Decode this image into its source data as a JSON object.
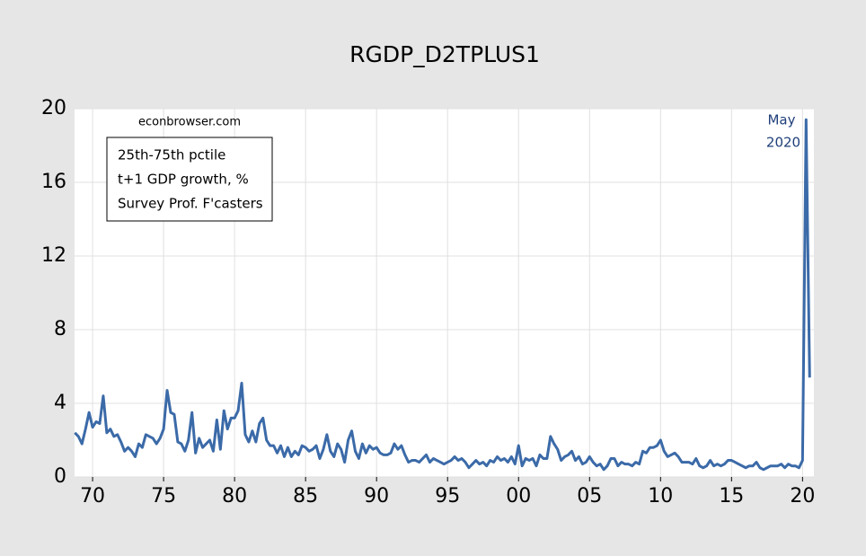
{
  "chart_data": {
    "type": "line",
    "title": "RGDP_D2TPLUS1",
    "annotations": {
      "source": "econbrowser.com",
      "box": [
        "25th-75th pctile",
        "t+1 GDP growth, %",
        "Survey Prof. F'casters"
      ],
      "peak": [
        "May",
        "2020"
      ]
    },
    "x": [
      1968.75,
      1969,
      1969.25,
      1969.5,
      1969.75,
      1970,
      1970.25,
      1970.5,
      1970.75,
      1971,
      1971.25,
      1971.5,
      1971.75,
      1972,
      1972.25,
      1972.5,
      1972.75,
      1973,
      1973.25,
      1973.5,
      1973.75,
      1974,
      1974.25,
      1974.5,
      1974.75,
      1975,
      1975.25,
      1975.5,
      1975.75,
      1976,
      1976.25,
      1976.5,
      1976.75,
      1977,
      1977.25,
      1977.5,
      1977.75,
      1978,
      1978.25,
      1978.5,
      1978.75,
      1979,
      1979.25,
      1979.5,
      1979.75,
      1980,
      1980.25,
      1980.5,
      1980.75,
      1981,
      1981.25,
      1981.5,
      1981.75,
      1982,
      1982.25,
      1982.5,
      1982.75,
      1983,
      1983.25,
      1983.5,
      1983.75,
      1984,
      1984.25,
      1984.5,
      1984.75,
      1985,
      1985.25,
      1985.5,
      1985.75,
      1986,
      1986.25,
      1986.5,
      1986.75,
      1987,
      1987.25,
      1987.5,
      1987.75,
      1988,
      1988.25,
      1988.5,
      1988.75,
      1989,
      1989.25,
      1989.5,
      1989.75,
      1990,
      1990.25,
      1990.5,
      1990.75,
      1991,
      1991.25,
      1991.5,
      1991.75,
      1992,
      1992.25,
      1992.5,
      1992.75,
      1993,
      1993.25,
      1993.5,
      1993.75,
      1994,
      1994.25,
      1994.5,
      1994.75,
      1995,
      1995.25,
      1995.5,
      1995.75,
      1996,
      1996.25,
      1996.5,
      1996.75,
      1997,
      1997.25,
      1997.5,
      1997.75,
      1998,
      1998.25,
      1998.5,
      1998.75,
      1999,
      1999.25,
      1999.5,
      1999.75,
      2000,
      2000.25,
      2000.5,
      2000.75,
      2001,
      2001.25,
      2001.5,
      2001.75,
      2002,
      2002.25,
      2002.5,
      2002.75,
      2003,
      2003.25,
      2003.5,
      2003.75,
      2004,
      2004.25,
      2004.5,
      2004.75,
      2005,
      2005.25,
      2005.5,
      2005.75,
      2006,
      2006.25,
      2006.5,
      2006.75,
      2007,
      2007.25,
      2007.5,
      2007.75,
      2008,
      2008.25,
      2008.5,
      2008.75,
      2009,
      2009.25,
      2009.5,
      2009.75,
      2010,
      2010.25,
      2010.5,
      2010.75,
      2011,
      2011.25,
      2011.5,
      2011.75,
      2012,
      2012.25,
      2012.5,
      2012.75,
      2013,
      2013.25,
      2013.5,
      2013.75,
      2014,
      2014.25,
      2014.5,
      2014.75,
      2015,
      2015.25,
      2015.5,
      2015.75,
      2016,
      2016.25,
      2016.5,
      2016.75,
      2017,
      2017.25,
      2017.5,
      2017.75,
      2018,
      2018.25,
      2018.5,
      2018.75,
      2019,
      2019.25,
      2019.5,
      2019.75,
      2020,
      2020.25,
      2020.5
    ],
    "series": [
      {
        "color": "#3b6aa8",
        "values": [
          2.4,
          2.2,
          1.8,
          2.6,
          3.5,
          2.7,
          3.0,
          2.9,
          4.4,
          2.4,
          2.6,
          2.2,
          2.3,
          1.9,
          1.4,
          1.6,
          1.4,
          1.1,
          1.8,
          1.6,
          2.3,
          2.2,
          2.1,
          1.8,
          2.1,
          2.6,
          4.7,
          3.5,
          3.4,
          1.9,
          1.8,
          1.4,
          2.0,
          3.5,
          1.3,
          2.1,
          1.6,
          1.8,
          2.0,
          1.4,
          3.1,
          1.5,
          3.6,
          2.6,
          3.2,
          3.2,
          3.6,
          5.1,
          2.3,
          1.9,
          2.5,
          1.9,
          2.9,
          3.2,
          2.0,
          1.7,
          1.7,
          1.3,
          1.7,
          1.1,
          1.6,
          1.1,
          1.4,
          1.2,
          1.7,
          1.6,
          1.4,
          1.5,
          1.7,
          1.0,
          1.5,
          2.3,
          1.4,
          1.1,
          1.8,
          1.5,
          0.8,
          2.0,
          2.5,
          1.4,
          1.0,
          1.8,
          1.3,
          1.7,
          1.5,
          1.6,
          1.3,
          1.2,
          1.2,
          1.3,
          1.8,
          1.5,
          1.7,
          1.2,
          0.8,
          0.9,
          0.9,
          0.8,
          1.0,
          1.2,
          0.8,
          1.0,
          0.9,
          0.8,
          0.7,
          0.8,
          0.9,
          1.1,
          0.9,
          1.0,
          0.8,
          0.5,
          0.7,
          0.9,
          0.7,
          0.8,
          0.6,
          0.9,
          0.8,
          1.1,
          0.9,
          1.0,
          0.8,
          1.1,
          0.7,
          1.7,
          0.6,
          1.0,
          0.9,
          1.0,
          0.6,
          1.2,
          1.0,
          1.0,
          2.2,
          1.8,
          1.5,
          0.9,
          1.1,
          1.2,
          1.4,
          0.9,
          1.1,
          0.7,
          0.8,
          1.1,
          0.8,
          0.6,
          0.7,
          0.4,
          0.6,
          1.0,
          1.0,
          0.6,
          0.8,
          0.7,
          0.7,
          0.6,
          0.8,
          0.7,
          1.4,
          1.3,
          1.6,
          1.6,
          1.7,
          2.0,
          1.4,
          1.1,
          1.2,
          1.3,
          1.1,
          0.8,
          0.8,
          0.8,
          0.7,
          1.0,
          0.6,
          0.5,
          0.6,
          0.9,
          0.6,
          0.7,
          0.6,
          0.7,
          0.9,
          0.9,
          0.8,
          0.7,
          0.6,
          0.5,
          0.6,
          0.6,
          0.8,
          0.5,
          0.4,
          0.5,
          0.6,
          0.6,
          0.6,
          0.7,
          0.5,
          0.7,
          0.6,
          0.6,
          0.5,
          0.9,
          19.4,
          5.4
        ]
      }
    ],
    "xlim": [
      1968.73,
      2020.8
    ],
    "ylim": [
      0,
      20
    ],
    "xticks": [
      {
        "value": 1970,
        "label": "70"
      },
      {
        "value": 1975,
        "label": "75"
      },
      {
        "value": 1980,
        "label": "80"
      },
      {
        "value": 1985,
        "label": "85"
      },
      {
        "value": 1990,
        "label": "90"
      },
      {
        "value": 1995,
        "label": "95"
      },
      {
        "value": 2000,
        "label": "00"
      },
      {
        "value": 2005,
        "label": "05"
      },
      {
        "value": 2010,
        "label": "10"
      },
      {
        "value": 2015,
        "label": "15"
      },
      {
        "value": 2020,
        "label": "20"
      }
    ],
    "yticks": [
      0,
      4,
      8,
      12,
      16,
      20
    ],
    "grid": true
  }
}
